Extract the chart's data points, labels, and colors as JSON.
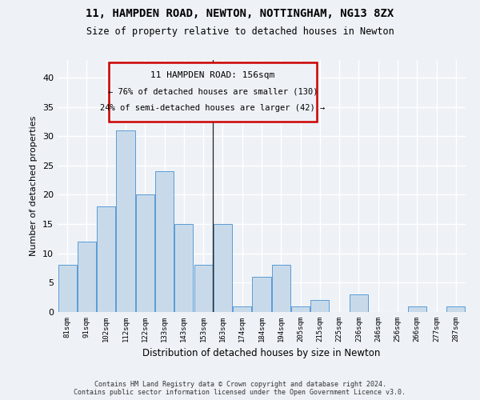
{
  "title_line1": "11, HAMPDEN ROAD, NEWTON, NOTTINGHAM, NG13 8ZX",
  "title_line2": "Size of property relative to detached houses in Newton",
  "xlabel": "Distribution of detached houses by size in Newton",
  "ylabel": "Number of detached properties",
  "categories": [
    "81sqm",
    "91sqm",
    "102sqm",
    "112sqm",
    "122sqm",
    "133sqm",
    "143sqm",
    "153sqm",
    "163sqm",
    "174sqm",
    "184sqm",
    "194sqm",
    "205sqm",
    "215sqm",
    "225sqm",
    "236sqm",
    "246sqm",
    "256sqm",
    "266sqm",
    "277sqm",
    "287sqm"
  ],
  "values": [
    8,
    12,
    18,
    31,
    20,
    24,
    15,
    8,
    15,
    1,
    6,
    8,
    1,
    2,
    0,
    3,
    0,
    0,
    1,
    0,
    1
  ],
  "bar_color": "#c8daea",
  "bar_edge_color": "#5b9bd5",
  "annotation_title": "11 HAMPDEN ROAD: 156sqm",
  "annotation_line1": "← 76% of detached houses are smaller (130)",
  "annotation_line2": "24% of semi-detached houses are larger (42) →",
  "vline_x_pos": 7.5,
  "ylim": [
    0,
    43
  ],
  "yticks": [
    0,
    5,
    10,
    15,
    20,
    25,
    30,
    35,
    40
  ],
  "footer_line1": "Contains HM Land Registry data © Crown copyright and database right 2024.",
  "footer_line2": "Contains public sector information licensed under the Open Government Licence v3.0.",
  "bg_color": "#eef2f7",
  "grid_color": "#ffffff"
}
